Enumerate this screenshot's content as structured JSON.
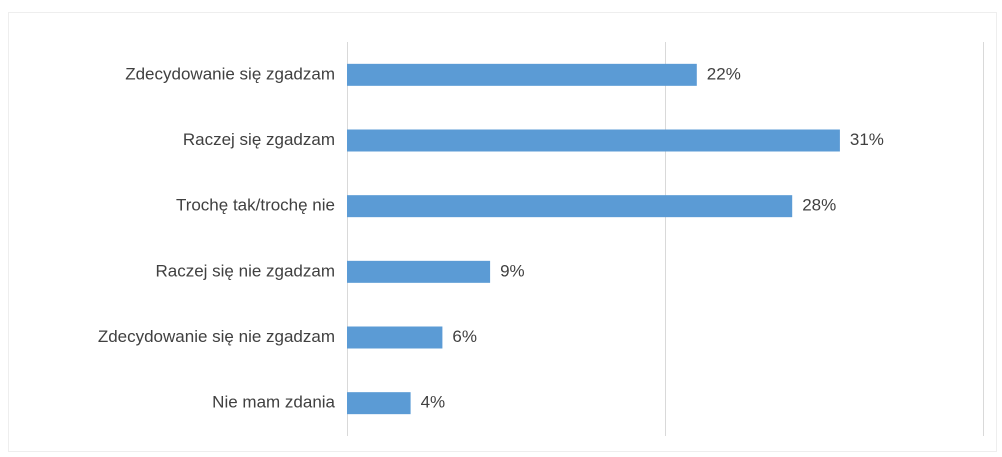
{
  "chart_data": {
    "type": "bar",
    "orientation": "horizontal",
    "categories": [
      "Zdecydowanie się zgadzam",
      "Raczej się zgadzam",
      "Trochę tak/trochę nie",
      "Raczej się nie zgadzam",
      "Zdecydowanie się nie zgadzam",
      "Nie mam zdania"
    ],
    "values": [
      22,
      31,
      28,
      9,
      6,
      4
    ],
    "value_labels": [
      "22%",
      "31%",
      "28%",
      "9%",
      "6%",
      "4%"
    ],
    "color": "#5b9bd5",
    "xlim": [
      0,
      40
    ],
    "xticks": [
      0,
      20,
      40
    ],
    "grid": true
  }
}
